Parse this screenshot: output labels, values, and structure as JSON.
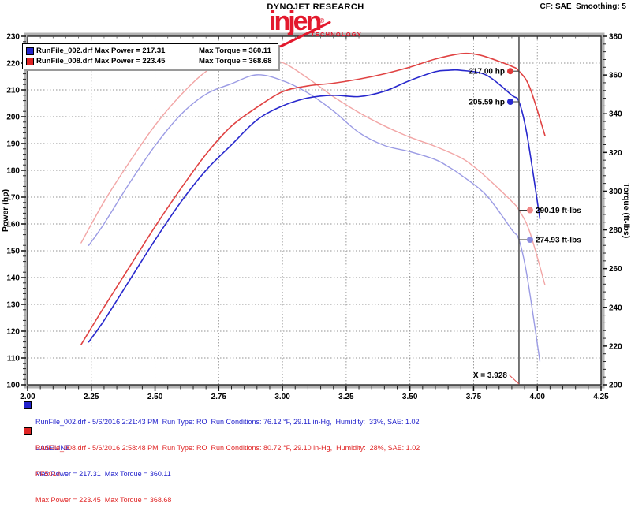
{
  "header": {
    "company": "DYNOJET RESEARCH",
    "correction": "CF: SAE  Smoothing: 5",
    "logo_text": "injen",
    "logo_mark": "®",
    "logo_sub": "TECHNOLOGY"
  },
  "legend": {
    "rows": [
      {
        "file": "RunFile_002.drf",
        "power": "Max Power = 217.31",
        "torque": "Max Torque = 360.11",
        "color": "#2323cc"
      },
      {
        "file": "RunFile_008.drf",
        "power": "Max Power = 223.45",
        "torque": "Max Torque = 368.68",
        "color": "#dd2222"
      }
    ]
  },
  "chart_data": {
    "type": "line",
    "xlabel": "Engine Speed (RPM x1000)",
    "ylabel_left": "Power (hp)",
    "ylabel_right": "Torque (ft-lbs)",
    "grid": true,
    "legend_position": "top-left",
    "x_range": [
      2.0,
      4.25
    ],
    "x_ticks": [
      "2.00",
      "2.25",
      "2.50",
      "2.75",
      "3.00",
      "3.25",
      "3.50",
      "3.75",
      "4.00",
      "4.25"
    ],
    "x_minor_step": 0.05,
    "power_range": [
      100,
      230
    ],
    "power_ticks": [
      230,
      220,
      210,
      200,
      190,
      180,
      170,
      160,
      150,
      140,
      130,
      120,
      110,
      100
    ],
    "power_minor_step": 2,
    "torque_range": [
      200,
      380
    ],
    "torque_ticks": [
      380,
      360,
      340,
      320,
      300,
      280,
      260,
      240,
      220,
      200
    ],
    "torque_minor_step": 4,
    "cursor_x": 3.928,
    "cursor_label": "X = 3.928",
    "cursor_color": "#555555",
    "series": [
      {
        "id": "torque-curve-baseline",
        "name": "RunFile_002.drf Torque",
        "axis": "torque",
        "color": "#9b9be4",
        "width": 1.4,
        "points": [
          [
            2.24,
            272.0
          ],
          [
            2.3,
            283.2
          ],
          [
            2.4,
            304.2
          ],
          [
            2.5,
            323.5
          ],
          [
            2.6,
            339.4
          ],
          [
            2.7,
            350.1
          ],
          [
            2.8,
            355.5
          ],
          [
            2.9,
            360.1
          ],
          [
            3.0,
            357.1
          ],
          [
            3.1,
            350.7
          ],
          [
            3.2,
            341.4
          ],
          [
            3.3,
            330.3
          ],
          [
            3.4,
            323.6
          ],
          [
            3.5,
            320.4
          ],
          [
            3.6,
            316.3
          ],
          [
            3.65,
            312.7
          ],
          [
            3.7,
            308.4
          ],
          [
            3.8,
            297.9
          ],
          [
            3.9,
            280.1
          ],
          [
            3.928,
            274.9
          ],
          [
            3.96,
            256.0
          ],
          [
            4.01,
            212.2
          ]
        ]
      },
      {
        "id": "torque-curve-pf5014",
        "name": "RunFile_008.drf Torque",
        "axis": "torque",
        "color": "#f2a6a6",
        "width": 1.4,
        "points": [
          [
            2.21,
            273.3
          ],
          [
            2.3,
            294.6
          ],
          [
            2.4,
            315.1
          ],
          [
            2.5,
            334.0
          ],
          [
            2.6,
            349.5
          ],
          [
            2.7,
            361.8
          ],
          [
            2.8,
            368.6
          ],
          [
            2.9,
            368.6
          ],
          [
            3.0,
            366.4
          ],
          [
            3.1,
            358.3
          ],
          [
            3.2,
            348.8
          ],
          [
            3.3,
            340.6
          ],
          [
            3.4,
            333.7
          ],
          [
            3.5,
            327.9
          ],
          [
            3.6,
            323.1
          ],
          [
            3.7,
            317.3
          ],
          [
            3.75,
            312.8
          ],
          [
            3.8,
            307.2
          ],
          [
            3.9,
            294.7
          ],
          [
            3.928,
            290.2
          ],
          [
            3.97,
            279.1
          ],
          [
            4.03,
            251.6
          ]
        ]
      },
      {
        "id": "power-curve-baseline",
        "name": "RunFile_002.drf Power",
        "axis": "power",
        "color": "#2828cd",
        "width": 1.6,
        "points": [
          [
            2.24,
            116
          ],
          [
            2.3,
            124
          ],
          [
            2.4,
            139
          ],
          [
            2.5,
            154
          ],
          [
            2.6,
            168
          ],
          [
            2.7,
            180
          ],
          [
            2.8,
            189.5
          ],
          [
            2.9,
            198.8
          ],
          [
            3.0,
            204
          ],
          [
            3.1,
            207
          ],
          [
            3.2,
            208
          ],
          [
            3.3,
            207.5
          ],
          [
            3.4,
            209.5
          ],
          [
            3.5,
            213.5
          ],
          [
            3.6,
            216.8
          ],
          [
            3.65,
            217.3
          ],
          [
            3.7,
            217.3
          ],
          [
            3.8,
            215.5
          ],
          [
            3.9,
            208
          ],
          [
            3.928,
            205.6
          ],
          [
            3.96,
            193
          ],
          [
            4.01,
            162
          ]
        ]
      },
      {
        "id": "power-curve-pf5014",
        "name": "RunFile_008.drf Power",
        "axis": "power",
        "color": "#e04343",
        "width": 1.6,
        "points": [
          [
            2.21,
            115
          ],
          [
            2.3,
            129
          ],
          [
            2.4,
            144
          ],
          [
            2.5,
            159
          ],
          [
            2.6,
            173
          ],
          [
            2.7,
            186
          ],
          [
            2.8,
            196.5
          ],
          [
            2.9,
            203.5
          ],
          [
            3.0,
            209.3
          ],
          [
            3.1,
            211.5
          ],
          [
            3.2,
            212.5
          ],
          [
            3.3,
            214
          ],
          [
            3.4,
            216
          ],
          [
            3.5,
            218.5
          ],
          [
            3.6,
            221.5
          ],
          [
            3.7,
            223.5
          ],
          [
            3.75,
            223.4
          ],
          [
            3.8,
            222.3
          ],
          [
            3.9,
            218.8
          ],
          [
            3.928,
            217.0
          ],
          [
            3.97,
            211
          ],
          [
            4.03,
            193
          ]
        ]
      }
    ],
    "annotations": [
      {
        "text": "217.00 hp",
        "axis": "power",
        "value": 217.0,
        "side": "left",
        "dot_color": "#e03838"
      },
      {
        "text": "205.59 hp",
        "axis": "power",
        "value": 205.59,
        "side": "left",
        "dot_color": "#2a2ad0"
      },
      {
        "text": "290.19 ft-lbs",
        "axis": "torque",
        "value": 290.19,
        "side": "right",
        "dot_color": "#f08585"
      },
      {
        "text": "274.93 ft-lbs",
        "axis": "torque",
        "value": 274.93,
        "side": "right",
        "dot_color": "#8b8bdf"
      }
    ]
  },
  "footer": {
    "runs": [
      {
        "color": "#2222cc",
        "line1": "RunFile_002.drf - 5/6/2016 2:21:43 PM  Run Type: RO  Run Conditions: 76.12 °F, 29.11 in-Hg,  Humidity:  33%, SAE: 1.02",
        "line2": "BASELINE",
        "line3": "Max Power = 217.31  Max Torque = 360.11"
      },
      {
        "color": "#e02525",
        "line1": "RunFile_008.drf - 5/6/2016 2:58:48 PM  Run Type: RO  Run Conditions: 80.72 °F, 29.10 in-Hg,  Humidity:  28%, SAE: 1.02",
        "line2": "PF5014",
        "line3": "Max Power = 223.45  Max Torque = 368.68"
      }
    ]
  }
}
